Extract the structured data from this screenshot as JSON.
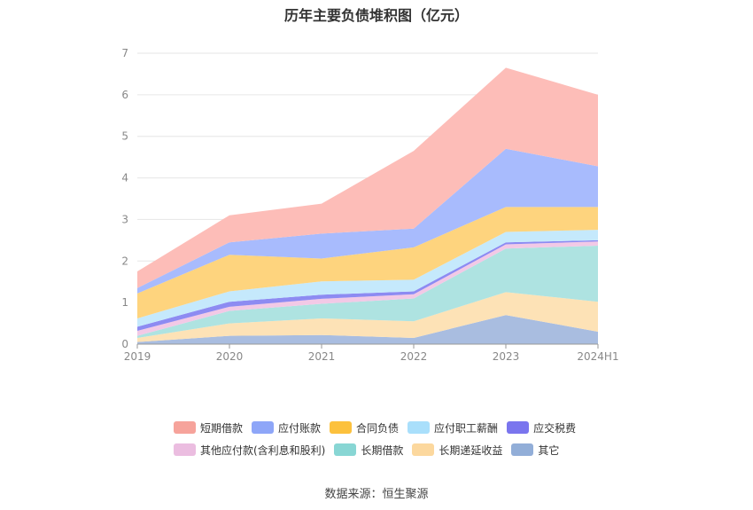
{
  "source_text": "数据来源：恒生聚源",
  "chart_data": {
    "type": "area",
    "stacked": true,
    "title": "历年主要负债堆积图（亿元）",
    "categories": [
      "2019",
      "2020",
      "2021",
      "2022",
      "2023",
      "2024H1"
    ],
    "ylim": [
      0,
      7
    ],
    "yticks": [
      0,
      1,
      2,
      3,
      4,
      5,
      6,
      7
    ],
    "grid": true,
    "legend_position": "bottom",
    "series": [
      {
        "name": "其它",
        "color": "#a9bde0",
        "values": [
          0.05,
          0.2,
          0.22,
          0.15,
          0.7,
          0.3
        ]
      },
      {
        "name": "长期递延收益",
        "color": "#fde2b6",
        "values": [
          0.1,
          0.3,
          0.4,
          0.4,
          0.55,
          0.72
        ]
      },
      {
        "name": "长期借款",
        "color": "#aee3e1",
        "values": [
          0.05,
          0.3,
          0.35,
          0.55,
          1.05,
          1.35
        ]
      },
      {
        "name": "其他应付款(含利息和股利)",
        "color": "#f2c9e6",
        "values": [
          0.12,
          0.1,
          0.12,
          0.1,
          0.1,
          0.1
        ]
      },
      {
        "name": "应交税费",
        "color": "#8d8bf2",
        "values": [
          0.1,
          0.12,
          0.1,
          0.07,
          0.05,
          0.03
        ]
      },
      {
        "name": "应付职工薪酬",
        "color": "#c5e9fc",
        "values": [
          0.2,
          0.25,
          0.32,
          0.28,
          0.25,
          0.25
        ]
      },
      {
        "name": "合同负债",
        "color": "#fed47e",
        "values": [
          0.6,
          0.88,
          0.55,
          0.78,
          0.6,
          0.55
        ]
      },
      {
        "name": "应付账款",
        "color": "#a8bbfd",
        "values": [
          0.13,
          0.3,
          0.6,
          0.45,
          1.4,
          0.98
        ]
      },
      {
        "name": "短期借款",
        "color": "#fdbdb8",
        "values": [
          0.4,
          0.65,
          0.72,
          1.87,
          1.95,
          1.72
        ]
      }
    ]
  },
  "legend": {
    "rows": [
      [
        {
          "label": "短期借款",
          "color": "#f6a39b"
        },
        {
          "label": "应付账款",
          "color": "#8ea6f8"
        },
        {
          "label": "合同负债",
          "color": "#fcc13d"
        },
        {
          "label": "应付职工薪酬",
          "color": "#a9dffb"
        },
        {
          "label": "应交税费",
          "color": "#7a75ee"
        }
      ],
      [
        {
          "label": "其他应付款(含利息和股利)",
          "color": "#ebbde0"
        },
        {
          "label": "长期借款",
          "color": "#88d6d4"
        },
        {
          "label": "长期递延收益",
          "color": "#fcd89e"
        },
        {
          "label": "其它",
          "color": "#92aed8"
        }
      ]
    ]
  }
}
